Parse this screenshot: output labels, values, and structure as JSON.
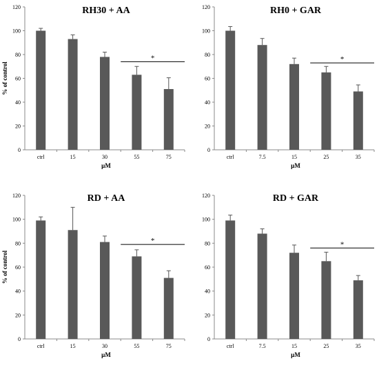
{
  "chart_data": [
    {
      "type": "bar",
      "title": "RH30 + AA",
      "xlabel": "µM",
      "ylabel": "% of control",
      "ylim": [
        0,
        120
      ],
      "yticks": [
        "0",
        "20",
        "40",
        "60",
        "80",
        "100",
        "120"
      ],
      "categories": [
        "ctrl",
        "15",
        "30",
        "55",
        "75"
      ],
      "values": [
        100,
        93,
        78,
        63,
        51
      ],
      "errors": [
        2,
        3.5,
        4,
        7,
        9.5
      ],
      "significance": {
        "label": "*",
        "from": "55",
        "to": "75",
        "y": 74
      },
      "bar_color": "#595959",
      "grid": false
    },
    {
      "type": "bar",
      "title": "RH0 + GAR",
      "xlabel": "µM",
      "ylabel": "",
      "ylim": [
        0,
        120
      ],
      "yticks": [
        "0",
        "20",
        "40",
        "60",
        "80",
        "100",
        "120"
      ],
      "categories": [
        "ctrl",
        "7.5",
        "15",
        "25",
        "35"
      ],
      "values": [
        100,
        88,
        72,
        65,
        49
      ],
      "errors": [
        3.5,
        5.5,
        5,
        5,
        5.5
      ],
      "significance": {
        "label": "*",
        "from": "25",
        "to": "35",
        "y": 73
      },
      "bar_color": "#595959",
      "grid": false
    },
    {
      "type": "bar",
      "title": "RD + AA",
      "xlabel": "µM",
      "ylabel": "% of control",
      "ylim": [
        0,
        120
      ],
      "yticks": [
        "0",
        "20",
        "40",
        "60",
        "80",
        "100",
        "120"
      ],
      "categories": [
        "ctrl",
        "15",
        "30",
        "55",
        "75"
      ],
      "values": [
        99,
        91,
        81,
        69,
        51
      ],
      "errors": [
        3,
        19,
        5,
        5.5,
        6
      ],
      "significance": {
        "label": "*",
        "from": "55",
        "to": "75",
        "y": 79
      },
      "bar_color": "#595959",
      "grid": false
    },
    {
      "type": "bar",
      "title": "RD + GAR",
      "xlabel": "µM",
      "ylabel": "",
      "ylim": [
        0,
        120
      ],
      "yticks": [
        "0",
        "20",
        "40",
        "60",
        "80",
        "100",
        "120"
      ],
      "categories": [
        "ctrl",
        "7.5",
        "15",
        "25",
        "35"
      ],
      "values": [
        99,
        88,
        72,
        65,
        49
      ],
      "errors": [
        4.5,
        4,
        6.5,
        7.5,
        4
      ],
      "significance": {
        "label": "*",
        "from": "25",
        "to": "35",
        "y": 76
      },
      "bar_color": "#595959",
      "grid": false
    }
  ]
}
